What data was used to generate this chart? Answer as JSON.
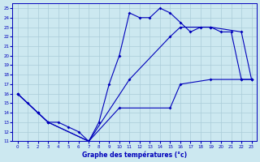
{
  "xlabel": "Graphe des températures (°c)",
  "bg_color": "#cce8f0",
  "line_color": "#0000bb",
  "grid_color": "#aaccd8",
  "xlim": [
    -0.5,
    23.5
  ],
  "ylim": [
    11,
    25.5
  ],
  "xticks": [
    0,
    1,
    2,
    3,
    4,
    5,
    6,
    7,
    8,
    9,
    10,
    11,
    12,
    13,
    14,
    15,
    16,
    17,
    18,
    19,
    20,
    21,
    22,
    23
  ],
  "yticks": [
    11,
    12,
    13,
    14,
    15,
    16,
    17,
    18,
    19,
    20,
    21,
    22,
    23,
    24,
    25
  ],
  "line1_x": [
    0,
    1,
    2,
    3,
    4,
    5,
    6,
    7,
    8,
    9,
    10,
    11,
    12,
    13,
    14,
    15,
    16,
    17,
    18,
    19,
    20,
    21,
    22,
    23
  ],
  "line1_y": [
    16,
    15,
    14,
    13,
    13,
    12.5,
    12,
    11,
    13,
    17,
    20,
    24.5,
    24,
    24,
    25,
    24.5,
    23.5,
    22.5,
    23,
    23,
    22.5,
    22.5,
    17.5,
    17.5
  ],
  "line2_x": [
    0,
    2,
    3,
    7,
    11,
    15,
    16,
    19,
    22,
    23
  ],
  "line2_y": [
    16,
    14,
    13,
    11,
    17.5,
    22,
    23,
    23,
    22.5,
    17.5
  ],
  "line3_x": [
    0,
    2,
    3,
    7,
    10,
    15,
    16,
    19,
    22,
    23
  ],
  "line3_y": [
    16,
    14,
    13,
    11,
    14.5,
    14.5,
    17,
    17.5,
    17.5,
    17.5
  ]
}
